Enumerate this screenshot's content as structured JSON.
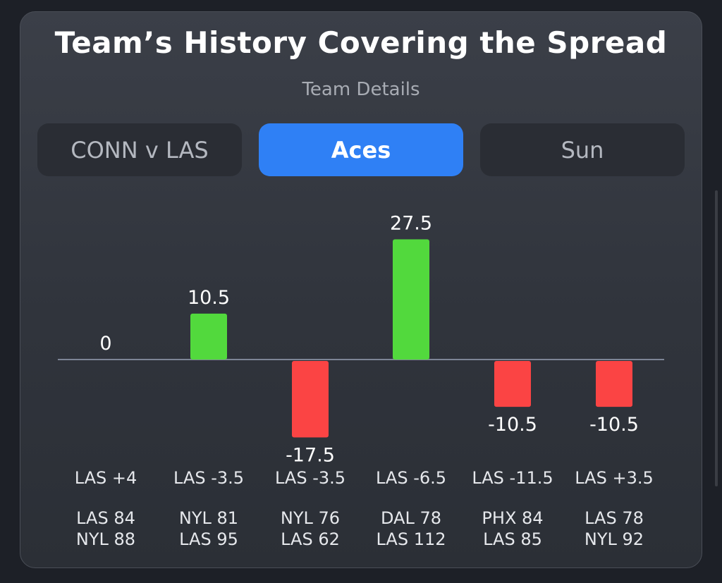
{
  "header": {
    "title": "Team’s History Covering the Spread",
    "subtitle": "Team Details"
  },
  "tabs": [
    {
      "label": "CONN v LAS",
      "active": false
    },
    {
      "label": "Aces",
      "active": true
    },
    {
      "label": "Sun",
      "active": false
    }
  ],
  "colors": {
    "positive": "#52d93d",
    "negative": "#fb4444",
    "accent": "#2f80f5"
  },
  "chart_data": {
    "type": "bar",
    "title": "",
    "xlabel": "",
    "ylabel": "",
    "categories": [
      "LAS +4",
      "LAS -3.5",
      "LAS -3.5",
      "LAS -6.5",
      "LAS -11.5",
      "LAS +3.5"
    ],
    "values": [
      0,
      10.5,
      -17.5,
      27.5,
      -10.5,
      -10.5
    ],
    "value_labels": [
      "0",
      "10.5",
      "-17.5",
      "27.5",
      "-10.5",
      "-10.5"
    ],
    "scores": [
      [
        "LAS 84",
        "NYL 88"
      ],
      [
        "NYL 81",
        "LAS 95"
      ],
      [
        "NYL 76",
        "LAS 62"
      ],
      [
        "DAL 78",
        "LAS 112"
      ],
      [
        "PHX 84",
        "LAS 85"
      ],
      [
        "LAS 78",
        "NYL 92"
      ]
    ],
    "ylim": [
      -17.5,
      27.5
    ],
    "grid": false
  }
}
